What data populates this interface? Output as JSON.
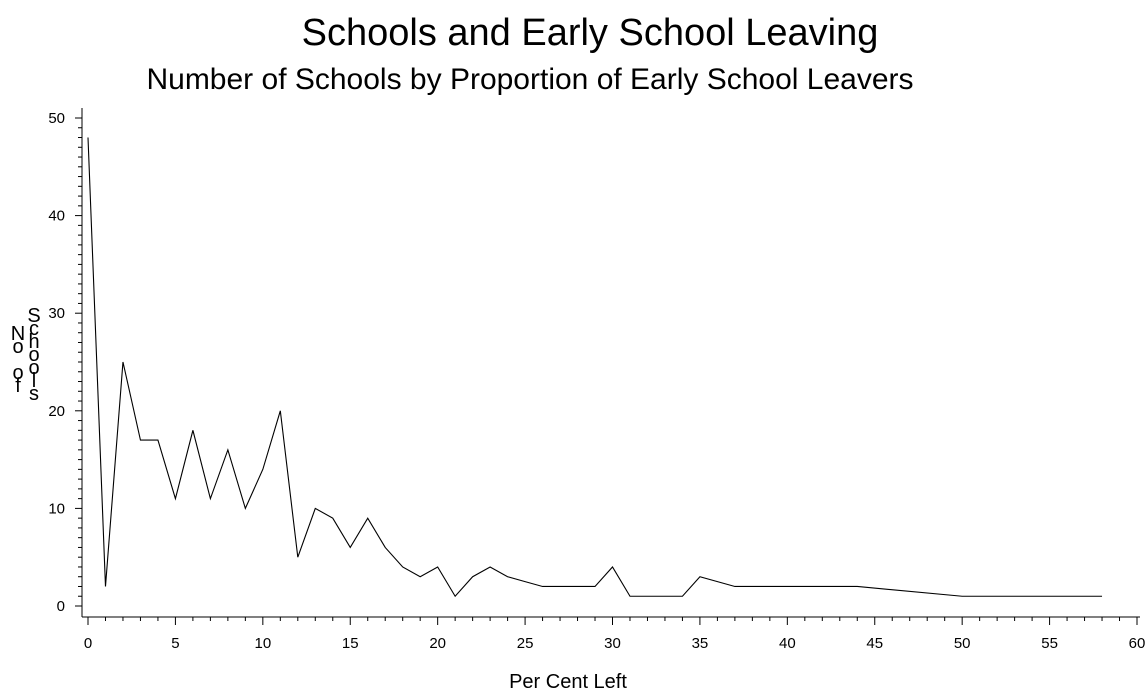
{
  "chart_data": {
    "type": "line",
    "title": "Schools and Early School Leaving",
    "subtitle": "Number of Schools by Proportion of Early School Leavers",
    "xlabel": "Per Cent Left",
    "ylabel_columns": [
      "No of",
      "Schools"
    ],
    "xlim": [
      0,
      60
    ],
    "ylim": [
      0,
      50
    ],
    "x_ticks": [
      0,
      5,
      10,
      15,
      20,
      25,
      30,
      35,
      40,
      45,
      50,
      55,
      60
    ],
    "y_ticks": [
      0,
      10,
      20,
      30,
      40,
      50
    ],
    "grid": false,
    "legend": "none",
    "line_color": "#000000",
    "series": [
      {
        "x": [
          0,
          1,
          2,
          3,
          4,
          5,
          6,
          7,
          8,
          9,
          10,
          11,
          12,
          13,
          14,
          15,
          16,
          17,
          18,
          19,
          20,
          21,
          22,
          23,
          24,
          25,
          26,
          29,
          30,
          31,
          34,
          35,
          37,
          44,
          50,
          58
        ],
        "y": [
          48,
          2,
          25,
          17,
          17,
          11,
          18,
          11,
          16,
          10,
          14,
          20,
          5,
          10,
          9,
          6,
          9,
          6,
          4,
          3,
          4,
          1,
          3,
          4,
          3,
          2.5,
          2,
          2,
          4,
          1,
          1,
          3,
          2,
          2,
          1,
          1
        ]
      }
    ]
  }
}
